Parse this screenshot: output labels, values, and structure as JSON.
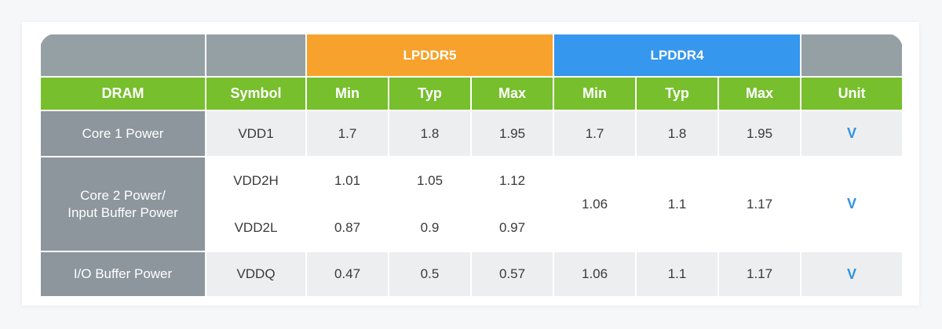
{
  "table": {
    "group_headers": {
      "blank1": "",
      "blank2": "",
      "lpddr5": "LPDDR5",
      "lpddr4": "LPDDR4",
      "blank3": ""
    },
    "column_headers": [
      "DRAM",
      "Symbol",
      "Min",
      "Typ",
      "Max",
      "Min",
      "Typ",
      "Max",
      "Unit"
    ],
    "rows": [
      {
        "label": "Core 1 Power",
        "symbol": "VDD1",
        "lp5": [
          "1.7",
          "1.8",
          "1.95"
        ],
        "lp4": [
          "1.7",
          "1.8",
          "1.95"
        ],
        "unit": "V"
      },
      {
        "label_line1": "Core 2 Power/",
        "label_line2": "Input Buffer Power",
        "sub": [
          {
            "symbol": "VDD2H",
            "lp5": [
              "1.01",
              "1.05",
              "1.12"
            ]
          },
          {
            "symbol": "VDD2L",
            "lp5": [
              "0.87",
              "0.9",
              "0.97"
            ]
          }
        ],
        "lp4": [
          "1.06",
          "1.1",
          "1.17"
        ],
        "unit": "V"
      },
      {
        "label": "I/O Buffer Power",
        "symbol": "VDDQ",
        "lp5": [
          "0.47",
          "0.5",
          "0.57"
        ],
        "lp4": [
          "1.06",
          "1.1",
          "1.17"
        ],
        "unit": "V"
      }
    ]
  },
  "colors": {
    "lpddr5": "#f7a22c",
    "lpddr4": "#3597ee",
    "header_green": "#77bf2c",
    "header_grey": "#95a0a5",
    "row_label": "#8c969c",
    "unit_blue": "#2f92e0"
  }
}
